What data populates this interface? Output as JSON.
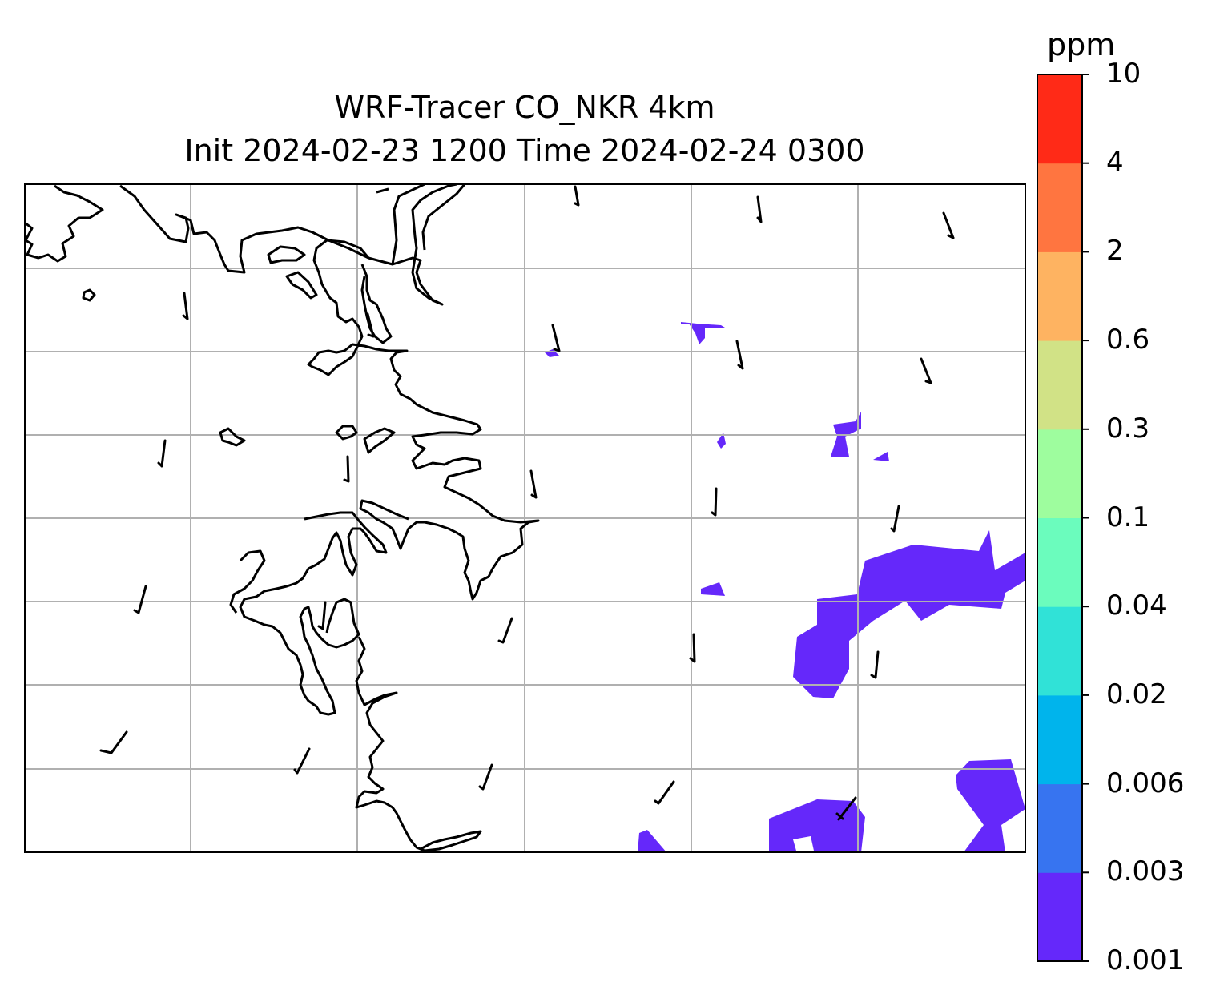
{
  "title": {
    "line1": "WRF-Tracer CO_NKR 4km",
    "line2": "Init 2024-02-23 1200 Time 2024-02-24 0300"
  },
  "colorbar": {
    "unit": "ppm",
    "levels": [
      "0.001",
      "0.003",
      "0.006",
      "0.02",
      "0.04",
      "0.1",
      "0.3",
      "0.6",
      "2",
      "4",
      "10"
    ],
    "colors": [
      "#6528fa",
      "#3774f0",
      "#00b4ec",
      "#30e2d7",
      "#6bfcbd",
      "#9efd9e",
      "#d1e286",
      "#feb361",
      "#ff7540",
      "#ff2a17"
    ]
  },
  "map": {
    "frame": "black",
    "gridlines": "on",
    "gridline_color": "#b0b0b0",
    "coastline_color": "#000000",
    "wind_barbs": "black",
    "tracer_fill_color": "#6528fa",
    "tracer_fill_level": "0.001 - 0.003 ppm"
  }
}
